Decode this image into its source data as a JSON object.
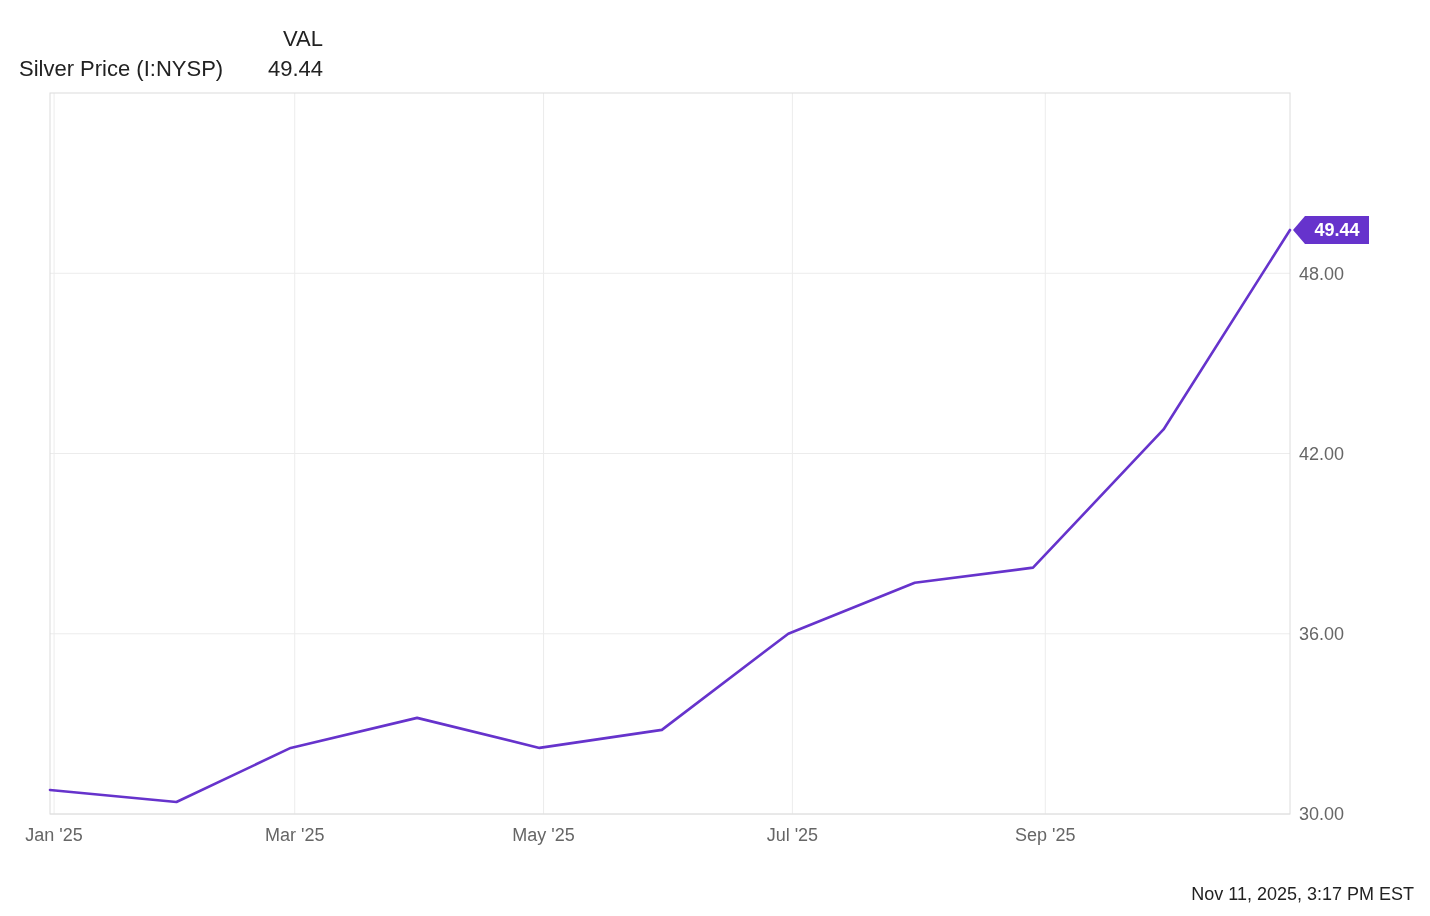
{
  "chart_data": {
    "type": "line",
    "legend_title": "VAL",
    "legend": "top left",
    "grid": true,
    "line_style": "solid",
    "annotations": [
      "Nov 11, 2025, 3:17 PM EST"
    ],
    "x": [
      "2024-12-31",
      "2025-01-31",
      "2025-02-28",
      "2025-03-31",
      "2025-04-30",
      "2025-05-30",
      "2025-06-30",
      "2025-07-31",
      "2025-08-29",
      "2025-09-30",
      "2025-10-31"
    ],
    "series": [
      {
        "name": "Silver Price (I:NYSP)",
        "color": "#6633cc",
        "values": [
          30.8,
          30.4,
          32.2,
          33.2,
          32.2,
          32.8,
          36.0,
          37.7,
          38.2,
          42.8,
          49.44
        ],
        "value_labels": [
          null,
          null,
          null,
          null,
          null,
          null,
          null,
          null,
          null,
          null,
          "49.44"
        ]
      }
    ],
    "xlim": [
      "2024-12-31",
      "2025-10-31"
    ],
    "xticks": [
      {
        "value": "2025-01-01",
        "label": "Jan '25"
      },
      {
        "value": "2025-03-01",
        "label": "Mar '25"
      },
      {
        "value": "2025-05-01",
        "label": "May '25"
      },
      {
        "value": "2025-07-01",
        "label": "Jul '25"
      },
      {
        "value": "2025-09-01",
        "label": "Sep '25"
      }
    ],
    "ylim": [
      30,
      54
    ],
    "yticks": [
      {
        "value": 30,
        "label": "30.00"
      },
      {
        "value": 36,
        "label": "36.00"
      },
      {
        "value": 42,
        "label": "42.00"
      },
      {
        "value": 48,
        "label": "48.00"
      }
    ]
  }
}
